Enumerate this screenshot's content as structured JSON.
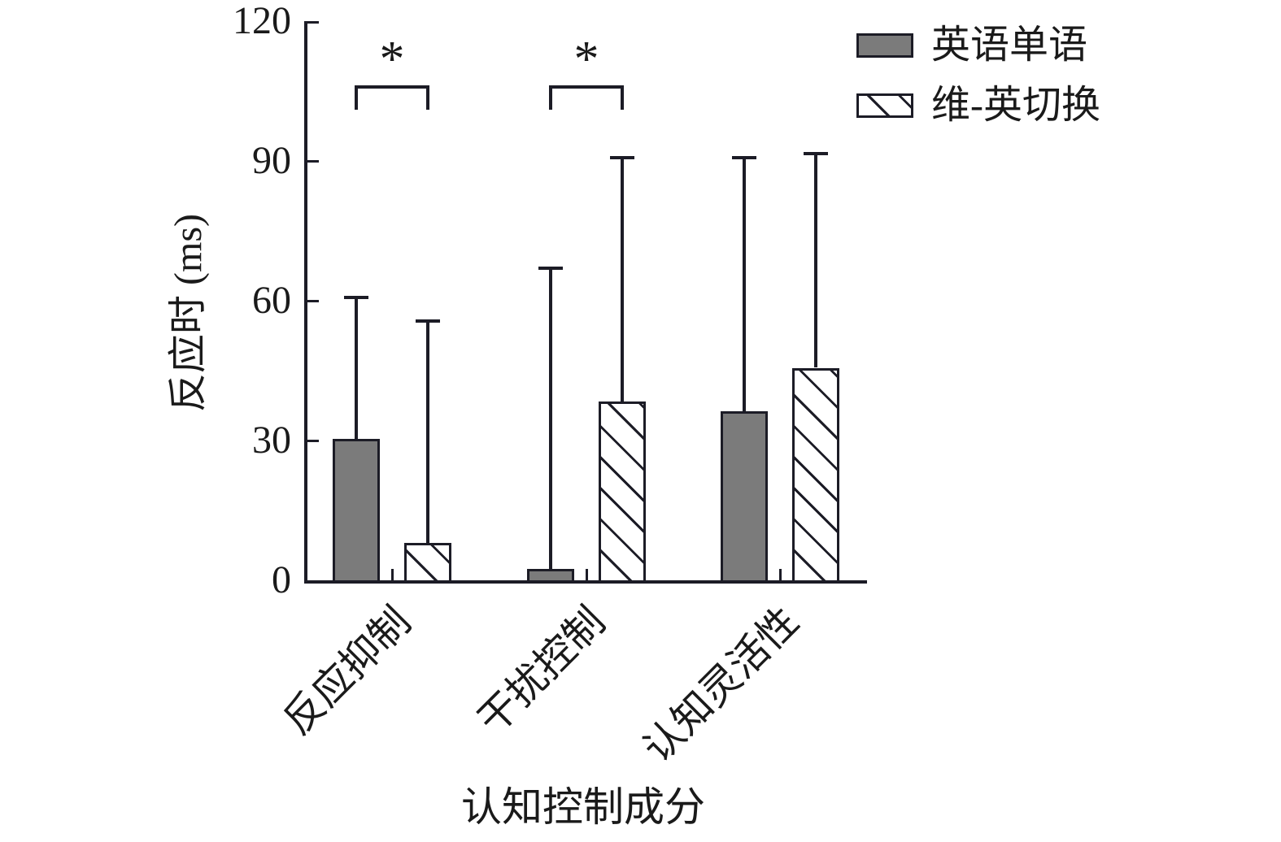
{
  "figure": {
    "background": "#ffffff",
    "ink_color": "#1c1c26",
    "text_color": "#1a1a1a",
    "bar_fill_gray": "#7b7b7b"
  },
  "legend": {
    "position": "top-right",
    "items": [
      {
        "label": "英语单语",
        "swatch": "solid-gray-rect",
        "fill": "#7b7b7b"
      },
      {
        "label": "维-英切换",
        "swatch": "backslash-hatched-rect",
        "fill": "#ffffff"
      }
    ]
  },
  "chart_data": {
    "type": "bar",
    "title": "",
    "xlabel": "认知控制成分",
    "ylabel": "反应时 (ms)",
    "ylim": [
      0,
      120
    ],
    "yticks": [
      "0",
      "30",
      "60",
      "90",
      "120"
    ],
    "ytick_values": [
      0,
      30,
      60,
      90,
      120
    ],
    "grid": false,
    "legend_position": "top-right",
    "categories": [
      "反应抑制",
      "干扰控制",
      "认知灵活性"
    ],
    "series": [
      {
        "name": "英语单语",
        "style": "solid-gray",
        "values": [
          30.3,
          2.5,
          36.3
        ],
        "errors_up": [
          30.7,
          64.8,
          54.7
        ]
      },
      {
        "name": "维-英切换",
        "style": "hatch-backslash",
        "values": [
          8.0,
          38.4,
          45.6
        ],
        "errors_up": [
          48.0,
          52.7,
          46.3
        ]
      }
    ],
    "significance": [
      {
        "group": 0,
        "symbol": "*",
        "between": [
          "英语单语",
          "维-英切换"
        ]
      },
      {
        "group": 1,
        "symbol": "*",
        "between": [
          "英语单语",
          "维-英切换"
        ]
      }
    ]
  }
}
